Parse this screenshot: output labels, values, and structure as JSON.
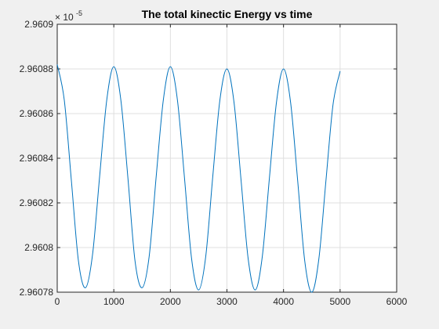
{
  "chart_data": {
    "type": "line",
    "title": "The total kinectic Energy vs time",
    "xlabel": "",
    "ylabel": "",
    "xlim": [
      0,
      6000
    ],
    "ylim": [
      2.96078e-05,
      2.9609e-05
    ],
    "grid": true,
    "legend": "none",
    "y_exponent_label": "× 10",
    "y_exponent_power": "-5",
    "x_ticks": [
      {
        "value": 0,
        "label": "0"
      },
      {
        "value": 1000,
        "label": "1000"
      },
      {
        "value": 2000,
        "label": "2000"
      },
      {
        "value": 3000,
        "label": "3000"
      },
      {
        "value": 4000,
        "label": "4000"
      },
      {
        "value": 5000,
        "label": "5000"
      },
      {
        "value": 6000,
        "label": "6000"
      }
    ],
    "y_ticks": [
      {
        "value": 2.96078,
        "label": "2.96078"
      },
      {
        "value": 2.9608,
        "label": "2.9608"
      },
      {
        "value": 2.96082,
        "label": "2.96082"
      },
      {
        "value": 2.96084,
        "label": "2.96084"
      },
      {
        "value": 2.96086,
        "label": "2.96086"
      },
      {
        "value": 2.96088,
        "label": "2.96088"
      },
      {
        "value": 2.9609,
        "label": "2.9609"
      }
    ],
    "series": [
      {
        "color": "#0072BD",
        "x": [
          0,
          125,
          250,
          375,
          500,
          625,
          750,
          875,
          1000,
          1125,
          1250,
          1375,
          1500,
          1625,
          1750,
          1875,
          2000,
          2125,
          2250,
          2375,
          2500,
          2625,
          2750,
          2875,
          3000,
          3125,
          3250,
          3375,
          3500,
          3625,
          3750,
          3875,
          4000,
          4125,
          4250,
          4375,
          4500,
          4625,
          4750,
          4875,
          5000
        ],
        "y_scaled": [
          2.960882,
          2.960866,
          2.96083,
          2.960794,
          2.960782,
          2.960797,
          2.960832,
          2.960866,
          2.960881,
          2.960866,
          2.960831,
          2.960794,
          2.960782,
          2.960796,
          2.960832,
          2.960866,
          2.960881,
          2.960866,
          2.960831,
          2.960795,
          2.960781,
          2.960796,
          2.960832,
          2.960866,
          2.96088,
          2.960865,
          2.96083,
          2.960795,
          2.960781,
          2.960796,
          2.960831,
          2.960865,
          2.96088,
          2.960865,
          2.96083,
          2.960794,
          2.96078,
          2.960795,
          2.96083,
          2.960864,
          2.960879
        ]
      }
    ]
  }
}
